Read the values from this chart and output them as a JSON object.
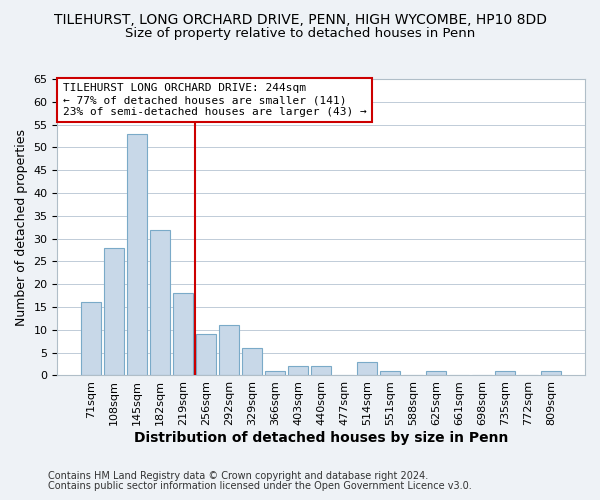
{
  "title": "TILEHURST, LONG ORCHARD DRIVE, PENN, HIGH WYCOMBE, HP10 8DD",
  "subtitle": "Size of property relative to detached houses in Penn",
  "xlabel": "Distribution of detached houses by size in Penn",
  "ylabel": "Number of detached properties",
  "bin_labels": [
    "71sqm",
    "108sqm",
    "145sqm",
    "182sqm",
    "219sqm",
    "256sqm",
    "292sqm",
    "329sqm",
    "366sqm",
    "403sqm",
    "440sqm",
    "477sqm",
    "514sqm",
    "551sqm",
    "588sqm",
    "625sqm",
    "661sqm",
    "698sqm",
    "735sqm",
    "772sqm",
    "809sqm"
  ],
  "bar_heights": [
    16,
    28,
    53,
    32,
    18,
    9,
    11,
    6,
    1,
    2,
    2,
    0,
    3,
    1,
    0,
    1,
    0,
    0,
    1,
    0,
    1
  ],
  "bar_color": "#c8d8e8",
  "bar_edge_color": "#7aaac8",
  "vline_color": "#cc0000",
  "vline_x": 4.5,
  "ylim": [
    0,
    65
  ],
  "yticks": [
    0,
    5,
    10,
    15,
    20,
    25,
    30,
    35,
    40,
    45,
    50,
    55,
    60,
    65
  ],
  "annotation_title": "TILEHURST LONG ORCHARD DRIVE: 244sqm",
  "annotation_line1": "← 77% of detached houses are smaller (141)",
  "annotation_line2": "23% of semi-detached houses are larger (43) →",
  "footer1": "Contains HM Land Registry data © Crown copyright and database right 2024.",
  "footer2": "Contains public sector information licensed under the Open Government Licence v3.0.",
  "background_color": "#eef2f6",
  "plot_bg_color": "#ffffff",
  "grid_color": "#c0ccd8",
  "title_fontsize": 10,
  "subtitle_fontsize": 9.5,
  "xlabel_fontsize": 10,
  "ylabel_fontsize": 9,
  "tick_fontsize": 8,
  "annotation_fontsize": 8,
  "footer_fontsize": 7
}
